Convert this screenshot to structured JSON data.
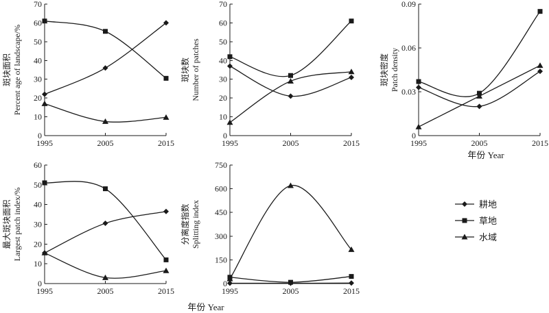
{
  "legend": {
    "items": [
      {
        "label": "耕地",
        "marker": "diamond"
      },
      {
        "label": "草地",
        "marker": "square"
      },
      {
        "label": "水域",
        "marker": "triangle"
      }
    ]
  },
  "xlabels": {
    "top": "年份 Year",
    "bottom": "年份 Year"
  },
  "chart_data": [
    {
      "type": "line",
      "id": "pland",
      "ylabel_cn": "斑块面积",
      "ylabel_en": "Percent age of landscape/%",
      "x": [
        1995,
        2005,
        2015
      ],
      "xticks": [
        "1995",
        "2005",
        "2015"
      ],
      "ylim": [
        0,
        70
      ],
      "yticks": [
        0,
        10,
        20,
        30,
        40,
        50,
        60,
        70
      ],
      "ytick_labels": [
        "0",
        "10",
        "20",
        "30",
        "40",
        "50",
        "60",
        "70"
      ],
      "series": [
        {
          "name": "耕地",
          "marker": "diamond",
          "values": [
            22,
            36,
            60
          ]
        },
        {
          "name": "草地",
          "marker": "square",
          "values": [
            61,
            55.5,
            30.5
          ]
        },
        {
          "name": "水域",
          "marker": "triangle",
          "values": [
            17,
            7.5,
            9.7
          ]
        }
      ]
    },
    {
      "type": "line",
      "id": "np",
      "ylabel_cn": "斑块数",
      "ylabel_en": "Number of patches",
      "x": [
        1995,
        2005,
        2015
      ],
      "xticks": [
        "1995",
        "2005",
        "2015"
      ],
      "ylim": [
        0,
        70
      ],
      "yticks": [
        0,
        10,
        20,
        30,
        40,
        50,
        60,
        70
      ],
      "ytick_labels": [
        "0",
        "10",
        "20",
        "30",
        "40",
        "50",
        "60",
        "70"
      ],
      "series": [
        {
          "name": "耕地",
          "marker": "diamond",
          "values": [
            37,
            21,
            31
          ]
        },
        {
          "name": "草地",
          "marker": "square",
          "values": [
            42,
            32,
            61
          ]
        },
        {
          "name": "水域",
          "marker": "triangle",
          "values": [
            7,
            29,
            34
          ]
        }
      ]
    },
    {
      "type": "line",
      "id": "pd",
      "ylabel_cn": "斑块密度",
      "ylabel_en": "Patch density",
      "x": [
        1995,
        2005,
        2015
      ],
      "xticks": [
        "1995",
        "2005",
        "2015"
      ],
      "ylim": [
        0,
        0.09
      ],
      "yticks": [
        0,
        0.03,
        0.06,
        0.09
      ],
      "ytick_labels": [
        "0",
        "0.03",
        "0.06",
        "0.09"
      ],
      "series": [
        {
          "name": "耕地",
          "marker": "diamond",
          "values": [
            0.033,
            0.02,
            0.044
          ]
        },
        {
          "name": "草地",
          "marker": "square",
          "values": [
            0.037,
            0.029,
            0.085
          ]
        },
        {
          "name": "水域",
          "marker": "triangle",
          "values": [
            0.006,
            0.027,
            0.048
          ]
        }
      ]
    },
    {
      "type": "line",
      "id": "lpi",
      "ylabel_cn": "最大斑块面积",
      "ylabel_en": "Largest patch index/%",
      "x": [
        1995,
        2005,
        2015
      ],
      "xticks": [
        "1995",
        "2005",
        "2015"
      ],
      "ylim": [
        0,
        60
      ],
      "yticks": [
        0,
        10,
        20,
        30,
        40,
        50,
        60
      ],
      "ytick_labels": [
        "0",
        "10",
        "20",
        "30",
        "40",
        "50",
        "60"
      ],
      "series": [
        {
          "name": "耕地",
          "marker": "diamond",
          "values": [
            15.5,
            30.5,
            36.5
          ]
        },
        {
          "name": "草地",
          "marker": "square",
          "values": [
            51,
            48,
            12
          ]
        },
        {
          "name": "水域",
          "marker": "triangle",
          "values": [
            15.5,
            3,
            6.5
          ]
        }
      ]
    },
    {
      "type": "line",
      "id": "split",
      "ylabel_cn": "分离度指数",
      "ylabel_en": "Splitting index",
      "x": [
        1995,
        2005,
        2015
      ],
      "xticks": [
        "1995",
        "2005",
        "2015"
      ],
      "ylim": [
        0,
        750
      ],
      "yticks": [
        0,
        150,
        300,
        450,
        600,
        750
      ],
      "ytick_labels": [
        "0",
        "150",
        "300",
        "450",
        "600",
        "750"
      ],
      "series": [
        {
          "name": "耕地",
          "marker": "diamond",
          "values": [
            2,
            2,
            3
          ]
        },
        {
          "name": "草地",
          "marker": "square",
          "values": [
            40,
            8,
            45
          ]
        },
        {
          "name": "水域",
          "marker": "triangle",
          "values": [
            30,
            620,
            215
          ]
        }
      ]
    }
  ]
}
